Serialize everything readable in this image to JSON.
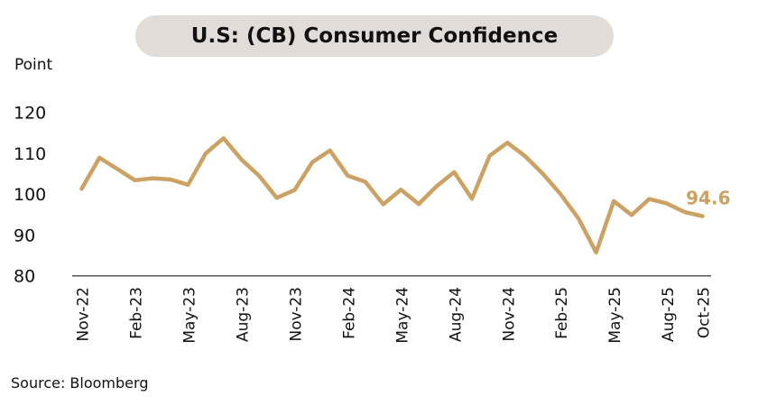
{
  "chart_data": {
    "type": "line",
    "title": "U.S: (CB) Consumer Confidence",
    "ylabel": "Point",
    "source": "Source: Bloomberg",
    "ylim": [
      80,
      120
    ],
    "yticks": [
      80,
      90,
      100,
      110,
      120
    ],
    "grid": false,
    "line_color": "#cba263",
    "x": [
      "Nov-22",
      "Dec-22",
      "Jan-23",
      "Feb-23",
      "Mar-23",
      "Apr-23",
      "May-23",
      "Jun-23",
      "Jul-23",
      "Aug-23",
      "Sep-23",
      "Oct-23",
      "Nov-23",
      "Dec-23",
      "Jan-24",
      "Feb-24",
      "Mar-24",
      "Apr-24",
      "May-24",
      "Jun-24",
      "Jul-24",
      "Aug-24",
      "Sep-24",
      "Oct-24",
      "Nov-24",
      "Dec-24",
      "Jan-25",
      "Feb-25",
      "Mar-25",
      "Apr-25",
      "May-25",
      "Jun-25",
      "Jul-25",
      "Aug-25",
      "Sep-25",
      "Oct-25"
    ],
    "xtick_labels": [
      "Nov-22",
      "Feb-23",
      "May-23",
      "Aug-23",
      "Nov-23",
      "Feb-24",
      "May-24",
      "Aug-24",
      "Nov-24",
      "Feb-25",
      "May-25",
      "Aug-25",
      "Oct-25"
    ],
    "values": [
      101.3,
      108.9,
      106.2,
      103.4,
      103.9,
      103.6,
      102.3,
      110.0,
      113.7,
      108.5,
      104.5,
      99.1,
      101.0,
      107.8,
      110.7,
      104.5,
      103.0,
      97.5,
      101.1,
      97.6,
      101.9,
      105.4,
      98.9,
      109.4,
      112.6,
      109.3,
      105.0,
      100.0,
      94.1,
      85.7,
      98.3,
      94.9,
      98.8,
      97.7,
      95.6,
      94.6
    ],
    "last_label": "94.6"
  }
}
